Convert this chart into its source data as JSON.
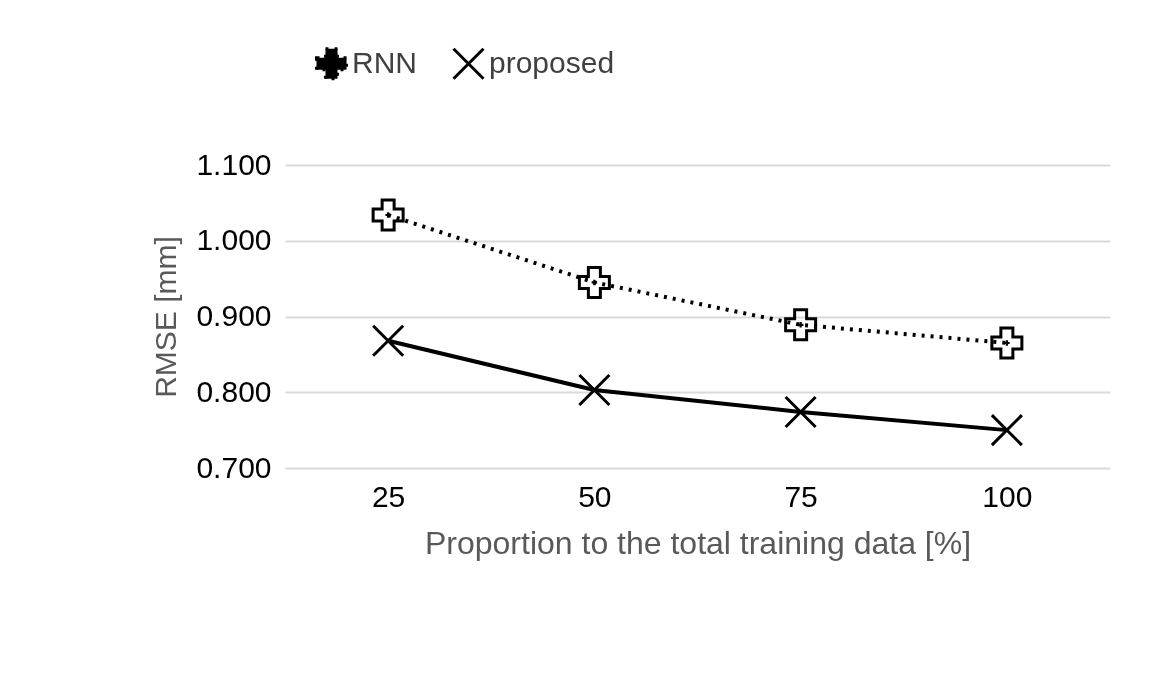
{
  "chart_data": {
    "type": "line",
    "xlabel": "Proportion to the total training data [%]",
    "ylabel": "RMSE [mm]",
    "categories": [
      "25",
      "50",
      "75",
      "100"
    ],
    "series": [
      {
        "name": "RNN",
        "color": "#000000",
        "values": [
          1.034,
          0.945,
          0.889,
          0.865
        ],
        "marker": "cross",
        "line_style": "dotted"
      },
      {
        "name": "proposed",
        "color": "#000000",
        "values": [
          0.868,
          0.803,
          0.774,
          0.75
        ],
        "marker": "x",
        "line_style": "solid"
      }
    ],
    "ylim": [
      0.7,
      1.1
    ],
    "yticks": [
      {
        "value": 0.7,
        "label": "0.700"
      },
      {
        "value": 0.8,
        "label": "0.800"
      },
      {
        "value": 0.9,
        "label": "0.900"
      },
      {
        "value": 1.0,
        "label": "1.000"
      },
      {
        "value": 1.1,
        "label": "1.100"
      }
    ],
    "grid": "y",
    "legend": "top"
  }
}
